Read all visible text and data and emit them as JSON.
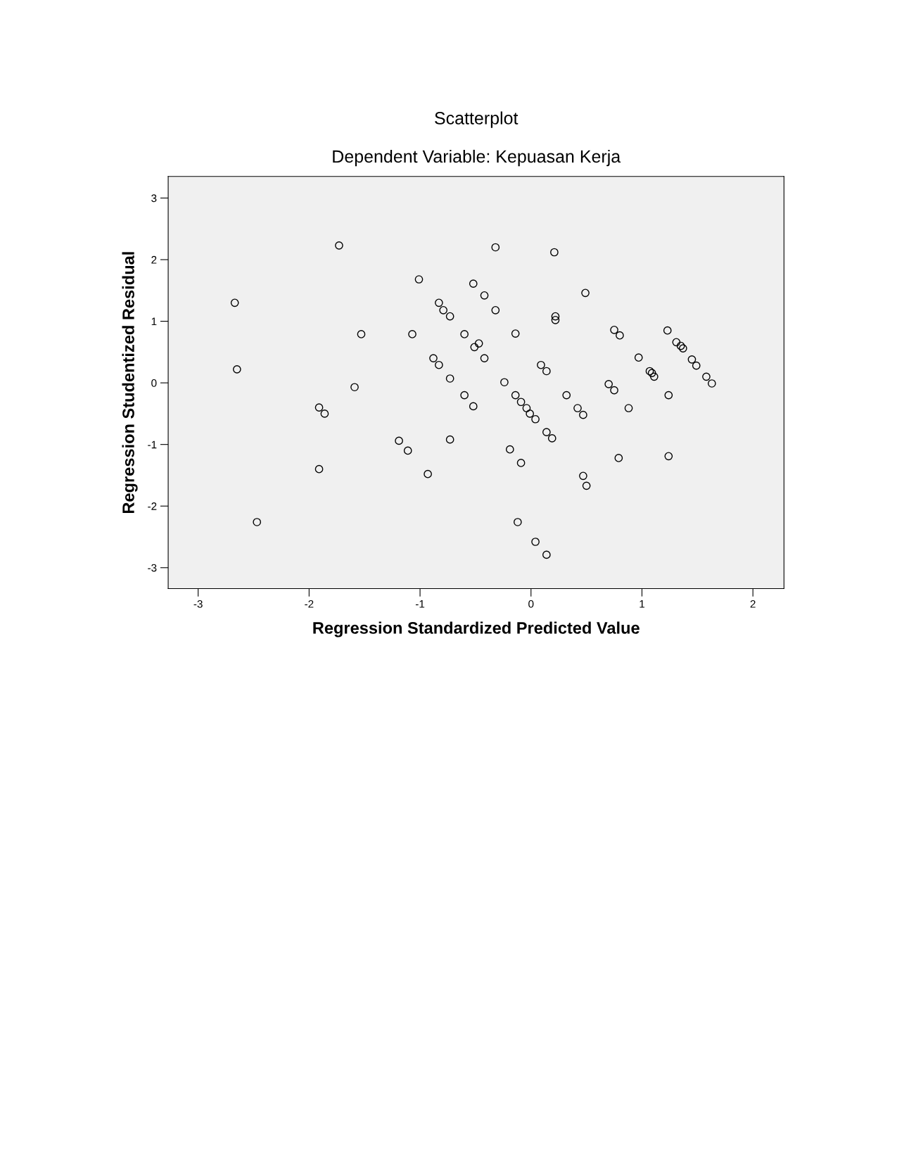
{
  "chart_data": {
    "type": "scatter",
    "title": "Scatterplot",
    "subtitle": "Dependent Variable: Kepuasan Kerja",
    "xlabel": "Regression Standardized Predicted Value",
    "ylabel": "Regression Studentized Residual",
    "xlim": [
      -3.27,
      2.28
    ],
    "ylim": [
      -3.34,
      3.35
    ],
    "xticks": [
      -3,
      -2,
      -1,
      0,
      1,
      2
    ],
    "yticks": [
      -3,
      -2,
      -1,
      0,
      1,
      2,
      3
    ],
    "grid": false,
    "legend": false,
    "marker": "circle",
    "series": [
      {
        "color": "#000000",
        "x": [
          -2.67,
          -2.65,
          -2.47,
          -1.73,
          -1.91,
          -1.86,
          -1.91,
          -1.59,
          -1.53,
          -1.19,
          -1.11,
          -1.07,
          -1.01,
          -0.93,
          -0.88,
          -0.83,
          -0.83,
          -0.79,
          -0.73,
          -0.73,
          -0.73,
          -0.6,
          -0.6,
          -0.52,
          -0.52,
          -0.51,
          -0.47,
          -0.42,
          -0.42,
          -0.32,
          -0.32,
          -0.24,
          -0.19,
          -0.14,
          -0.14,
          -0.12,
          -0.09,
          -0.09,
          -0.04,
          -0.01,
          0.04,
          0.04,
          0.09,
          0.14,
          0.14,
          0.14,
          0.19,
          0.21,
          0.22,
          0.22,
          0.32,
          0.42,
          0.47,
          0.47,
          0.49,
          0.5,
          0.7,
          0.75,
          0.75,
          0.79,
          0.8,
          0.88,
          0.97,
          1.07,
          1.09,
          1.11,
          1.23,
          1.24,
          1.24,
          1.31,
          1.35,
          1.37,
          1.45,
          1.49,
          1.58,
          1.63
        ],
        "values": [
          1.3,
          0.22,
          -2.26,
          2.23,
          -0.4,
          -0.5,
          -1.4,
          -0.07,
          0.79,
          -0.94,
          -1.1,
          0.79,
          1.68,
          -1.48,
          0.4,
          1.3,
          0.29,
          1.18,
          1.08,
          0.07,
          -0.92,
          0.79,
          -0.2,
          1.61,
          -0.38,
          0.58,
          0.64,
          1.42,
          0.4,
          2.2,
          1.18,
          0.01,
          -1.08,
          0.8,
          -0.2,
          -2.26,
          -0.31,
          -1.3,
          -0.41,
          -0.5,
          -0.59,
          -2.58,
          0.29,
          0.19,
          -0.8,
          -2.79,
          -0.9,
          2.12,
          1.08,
          1.02,
          -0.2,
          -0.41,
          -0.52,
          -1.51,
          1.46,
          -1.67,
          -0.02,
          0.86,
          -0.12,
          -1.22,
          0.77,
          -0.41,
          0.41,
          0.19,
          0.16,
          0.1,
          0.85,
          -0.2,
          -1.19,
          0.66,
          0.6,
          0.56,
          0.38,
          0.28,
          0.1,
          -0.01
        ]
      }
    ]
  }
}
